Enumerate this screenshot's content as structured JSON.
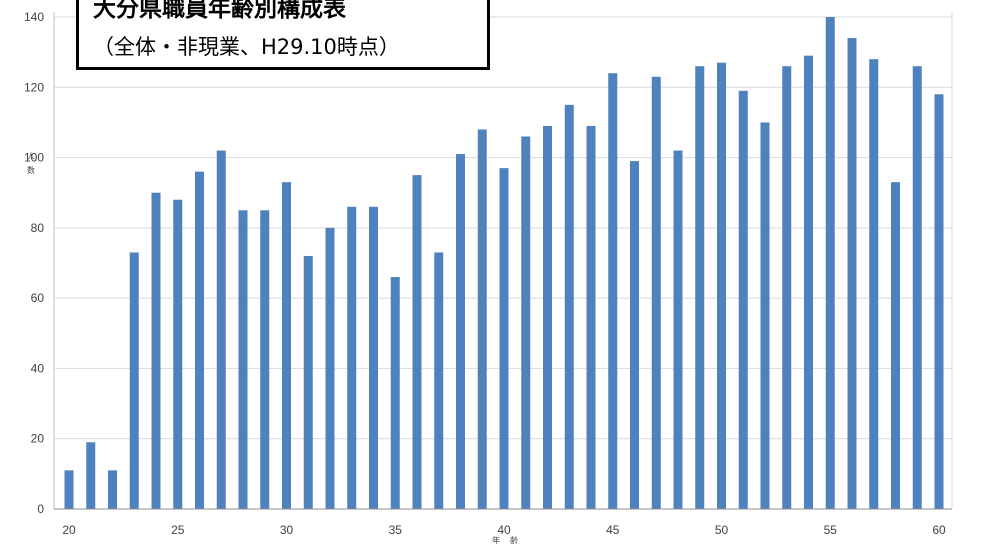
{
  "chart_data": {
    "type": "bar",
    "title": "大分県職員年齢別構成表",
    "subtitle": "（全体・非現業、H29.10時点）",
    "xlabel": "年齢",
    "ylabel": "人数",
    "x": [
      20,
      21,
      22,
      23,
      24,
      25,
      26,
      27,
      28,
      29,
      30,
      31,
      32,
      33,
      34,
      35,
      36,
      37,
      38,
      39,
      40,
      41,
      42,
      43,
      44,
      45,
      46,
      47,
      48,
      49,
      50,
      51,
      52,
      53,
      54,
      55,
      56,
      57,
      58,
      59,
      60
    ],
    "values": [
      11,
      19,
      11,
      73,
      90,
      88,
      96,
      102,
      85,
      85,
      93,
      72,
      80,
      86,
      86,
      66,
      95,
      73,
      101,
      108,
      97,
      106,
      109,
      115,
      109,
      124,
      99,
      123,
      102,
      126,
      127,
      119,
      110,
      126,
      129,
      140,
      134,
      128,
      93,
      126,
      118
    ],
    "xticks": [
      "20",
      "25",
      "30",
      "35",
      "40",
      "45",
      "50",
      "55",
      "60"
    ],
    "yticks": [
      "0",
      "20",
      "40",
      "60",
      "80",
      "100",
      "120",
      "140"
    ],
    "ylim": [
      0,
      140
    ],
    "grid": true,
    "bar_color": "#4f81bd"
  }
}
